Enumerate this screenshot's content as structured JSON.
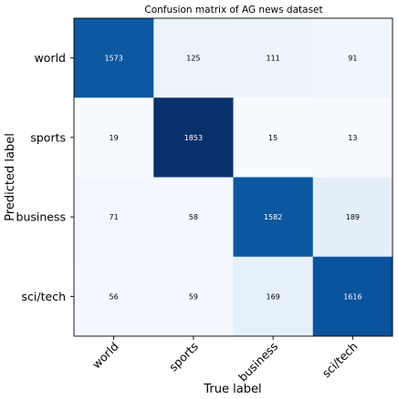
{
  "chart_data": {
    "type": "heatmap",
    "title": "Confusion matrix of AG news dataset",
    "xlabel": "True label",
    "ylabel": "Predicted label",
    "x_categories": [
      "world",
      "sports",
      "business",
      "sci/tech"
    ],
    "y_categories": [
      "world",
      "sports",
      "business",
      "sci/tech"
    ],
    "values": [
      [
        1573,
        125,
        111,
        91
      ],
      [
        19,
        1853,
        15,
        13
      ],
      [
        71,
        58,
        1582,
        189
      ],
      [
        56,
        59,
        169,
        1616
      ]
    ],
    "colormap": "Blues",
    "colors": {
      "low": "#f7fbff",
      "high": "#08306b",
      "text_dark": "#000000",
      "text_light": "#ffffff"
    }
  }
}
